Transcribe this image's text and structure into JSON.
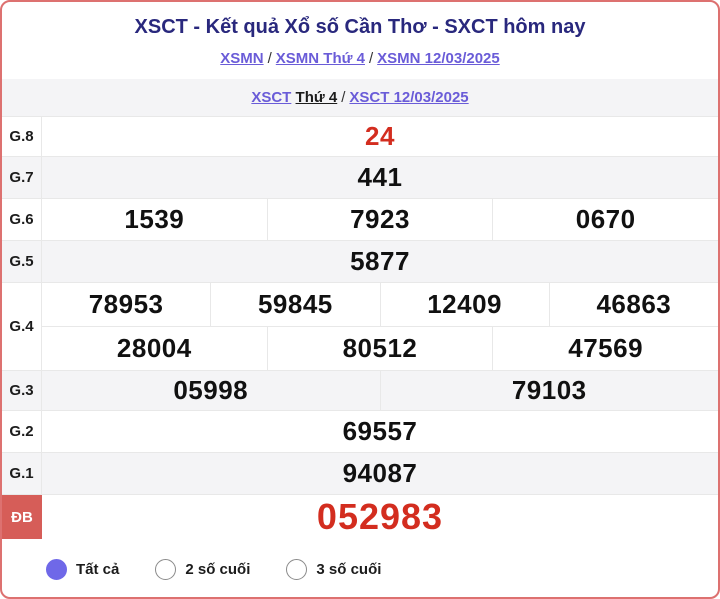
{
  "title": "XSCT - Kết quả Xổ số Cần Thơ - SXCT hôm nay",
  "breadcrumb_xsmn": {
    "separator": "/",
    "links": [
      {
        "label": "XSMN"
      },
      {
        "label": "XSMN Thứ 4"
      },
      {
        "label": "XSMN 12/03/2025"
      }
    ]
  },
  "breadcrumb_xsct": {
    "separator": "/",
    "link_region": "XSCT",
    "current_day": "Thứ 4",
    "link_date": "XSCT 12/03/2025"
  },
  "results": {
    "rows": [
      {
        "label": "G.8",
        "values": [
          "24"
        ],
        "highlight": true
      },
      {
        "label": "G.7",
        "values": [
          "441"
        ]
      },
      {
        "label": "G.6",
        "values": [
          "1539",
          "7923",
          "0670"
        ]
      },
      {
        "label": "G.5",
        "values": [
          "5877"
        ]
      },
      {
        "label": "G.4",
        "line1": [
          "78953",
          "59845",
          "12409",
          "46863"
        ],
        "line2": [
          "28004",
          "80512",
          "47569"
        ]
      },
      {
        "label": "G.3",
        "values": [
          "05998",
          "79103"
        ]
      },
      {
        "label": "G.2",
        "values": [
          "69557"
        ]
      },
      {
        "label": "G.1",
        "values": [
          "94087"
        ]
      },
      {
        "label": "ĐB",
        "values": [
          "052983"
        ],
        "highlight": true
      }
    ]
  },
  "filters": {
    "options": [
      {
        "label": "Tất cả",
        "selected": true
      },
      {
        "label": "2 số cuối",
        "selected": false
      },
      {
        "label": "3 số cuối",
        "selected": false
      }
    ]
  },
  "colors": {
    "card_border": "#dd7170",
    "title_navy": "#29287d",
    "link_purple": "#6a5cd8",
    "row_alt_bg": "#f4f4f6",
    "divider": "#e8e8e8",
    "number_red": "#d32d1f",
    "db_label_bg": "#d65d58",
    "radio_selected": "#6f68e8",
    "text_dark": "#1c1c1c"
  }
}
